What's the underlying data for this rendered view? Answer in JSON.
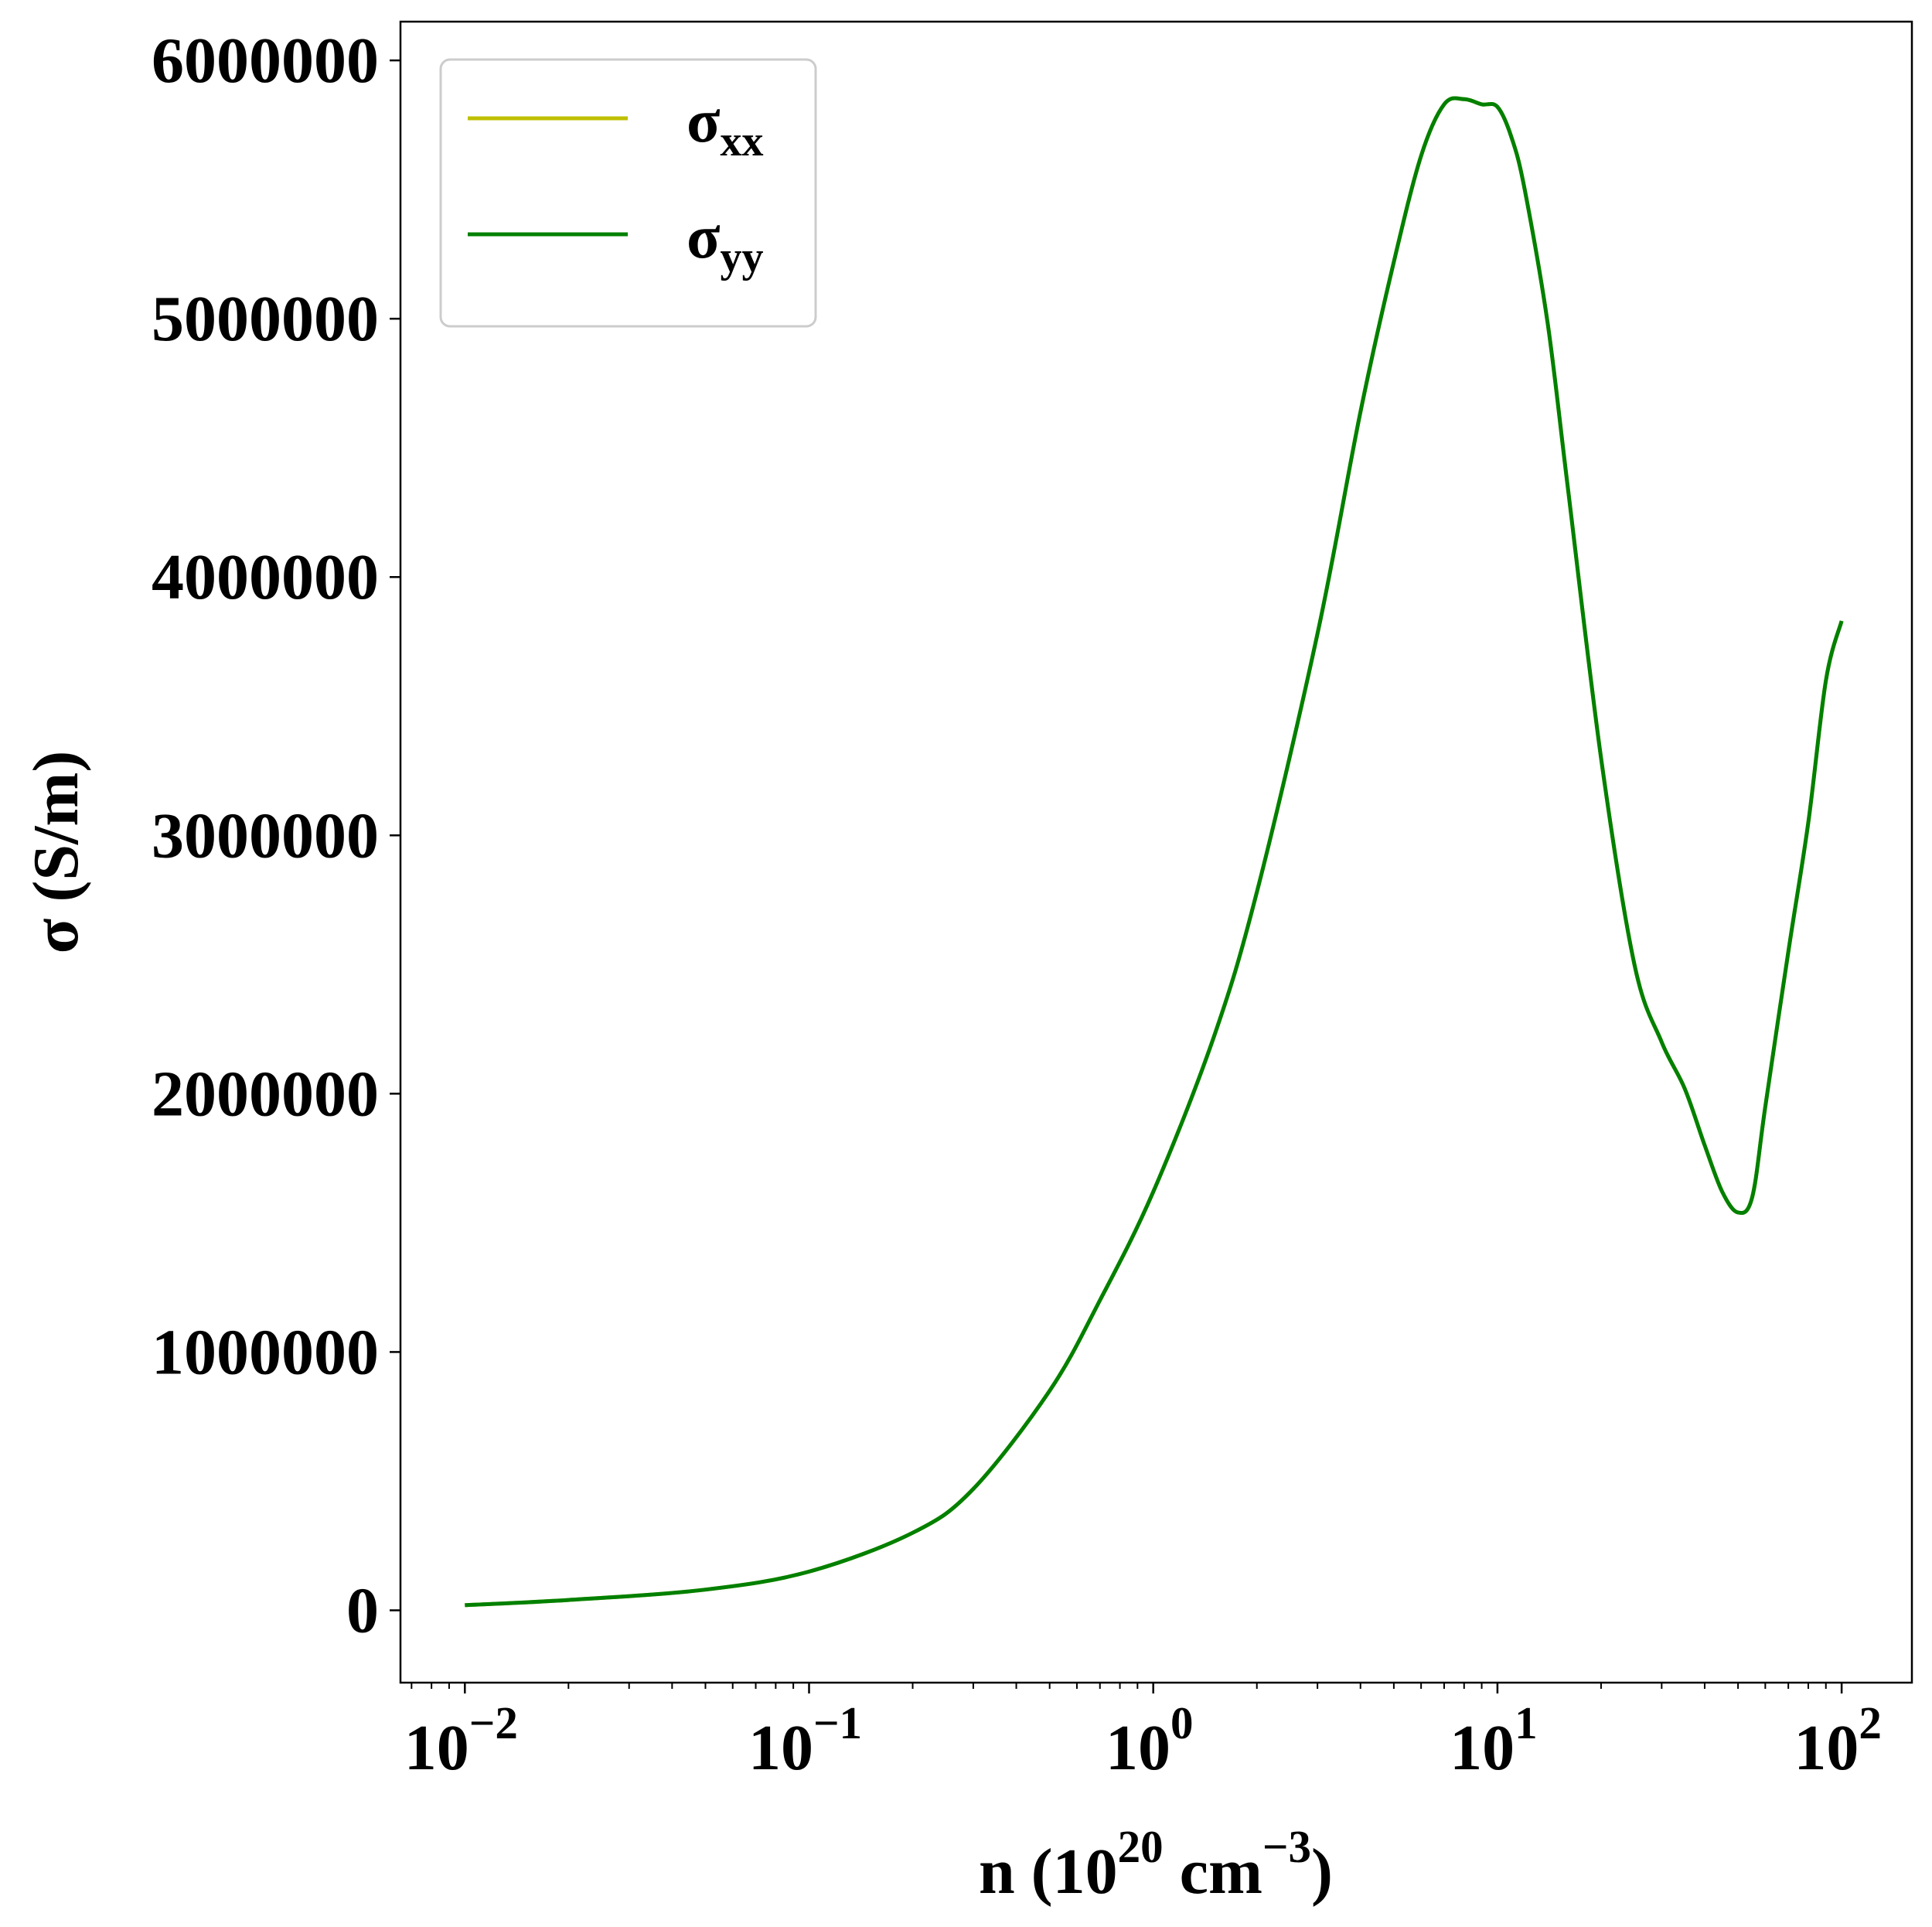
{
  "chart_data": {
    "type": "line",
    "title": "",
    "xlabel": {
      "base": "n (10",
      "sup1": "20",
      "mid": " cm",
      "sup2": "−3",
      "end": ")"
    },
    "ylabel": "σ (S/m)",
    "xscale": "log",
    "xlim": [
      0.0065,
      160
    ],
    "ylim": [
      -280000,
      6150000
    ],
    "grid": false,
    "legend_position": "top-left",
    "x_ticks": [
      {
        "value": 0.01,
        "base": "10",
        "exp": "−2"
      },
      {
        "value": 0.1,
        "base": "10",
        "exp": "−1"
      },
      {
        "value": 1,
        "base": "10",
        "exp": "0"
      },
      {
        "value": 10,
        "base": "10",
        "exp": "1"
      },
      {
        "value": 100,
        "base": "10",
        "exp": "2"
      }
    ],
    "y_ticks": [
      {
        "value": 0,
        "label": "0"
      },
      {
        "value": 1000000,
        "label": "1000000"
      },
      {
        "value": 2000000,
        "label": "2000000"
      },
      {
        "value": 3000000,
        "label": "3000000"
      },
      {
        "value": 4000000,
        "label": "4000000"
      },
      {
        "value": 5000000,
        "label": "5000000"
      },
      {
        "value": 6000000,
        "label": "6000000"
      }
    ],
    "series": [
      {
        "name": "σxx",
        "symbol": "σ",
        "subscript": "xx",
        "color": "#bfbf00",
        "x": [
          0.01,
          0.02,
          0.05,
          0.1,
          0.2,
          0.3,
          0.5,
          0.7,
          1.0,
          1.5,
          2.0,
          3.0,
          4.0,
          5.0,
          6.0,
          7.0,
          8.0,
          9.0,
          10.0,
          11.0,
          12.0,
          14.0,
          16.0,
          20.0,
          25.0,
          30.0,
          35.0,
          40.0,
          45.0,
          50.0,
          55.0,
          60.0,
          70.0,
          80.0,
          90.0,
          100.0
        ],
        "y": [
          20000,
          40000,
          80000,
          150000,
          300000,
          470000,
          850000,
          1200000,
          1620000,
          2220000,
          2780000,
          3780000,
          4640000,
          5220000,
          5630000,
          5830000,
          5850000,
          5830000,
          5820000,
          5700000,
          5500000,
          4980000,
          4350000,
          3300000,
          2500000,
          2200000,
          2020000,
          1800000,
          1620000,
          1540000,
          1600000,
          1950000,
          2550000,
          3050000,
          3600000,
          3830000
        ]
      },
      {
        "name": "σyy",
        "symbol": "σ",
        "subscript": "yy",
        "color": "#008000",
        "x": [
          0.01,
          0.02,
          0.05,
          0.1,
          0.2,
          0.3,
          0.5,
          0.7,
          1.0,
          1.5,
          2.0,
          3.0,
          4.0,
          5.0,
          6.0,
          7.0,
          8.0,
          9.0,
          10.0,
          11.0,
          12.0,
          14.0,
          16.0,
          20.0,
          25.0,
          30.0,
          35.0,
          40.0,
          45.0,
          50.0,
          55.0,
          60.0,
          70.0,
          80.0,
          90.0,
          100.0
        ],
        "y": [
          20000,
          40000,
          80000,
          150000,
          300000,
          470000,
          850000,
          1200000,
          1620000,
          2220000,
          2780000,
          3780000,
          4640000,
          5220000,
          5630000,
          5830000,
          5850000,
          5830000,
          5820000,
          5700000,
          5500000,
          4980000,
          4350000,
          3300000,
          2500000,
          2200000,
          2020000,
          1800000,
          1620000,
          1540000,
          1600000,
          1950000,
          2550000,
          3050000,
          3600000,
          3830000
        ]
      }
    ]
  }
}
